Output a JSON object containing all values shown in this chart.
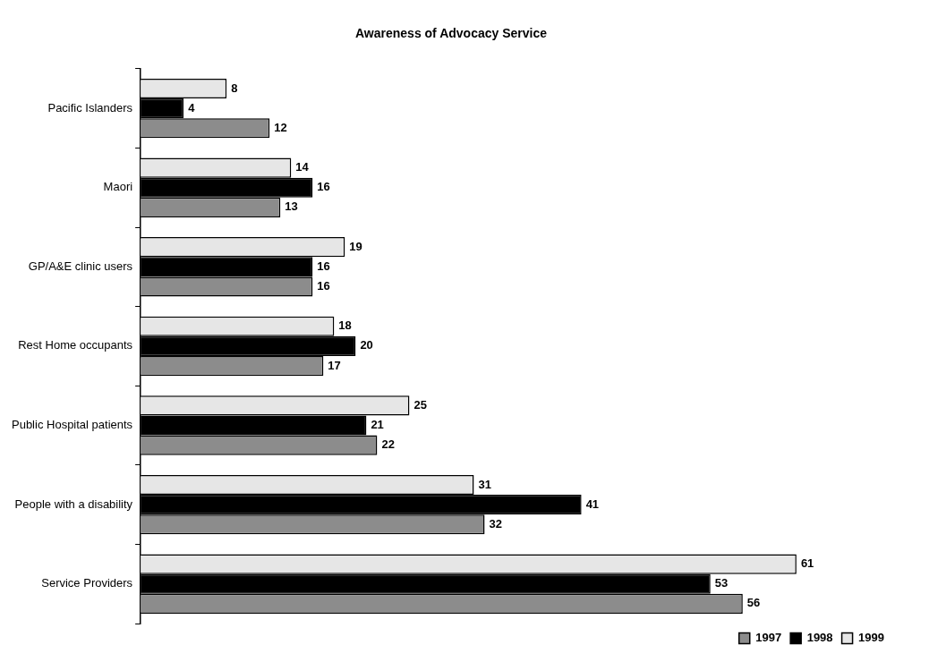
{
  "chart_data": {
    "type": "bar",
    "orientation": "horizontal",
    "title": "Awareness of Advocacy Service",
    "categories": [
      "Pacific Islanders",
      "Maori",
      "GP/A&E clinic users",
      "Rest Home occupants",
      "Public Hospital patients",
      "People with a disability",
      "Service Providers"
    ],
    "series": [
      {
        "name": "1997",
        "color": "#8c8c8c",
        "values": [
          12,
          13,
          16,
          17,
          22,
          32,
          56
        ]
      },
      {
        "name": "1998",
        "color": "#000000",
        "values": [
          4,
          16,
          16,
          20,
          21,
          41,
          53
        ]
      },
      {
        "name": "1999",
        "color": "#e6e6e6",
        "values": [
          8,
          14,
          19,
          18,
          25,
          31,
          61
        ]
      }
    ],
    "data_labels": true,
    "grid": false,
    "legend": "bottom right",
    "tick_labels": "y"
  }
}
